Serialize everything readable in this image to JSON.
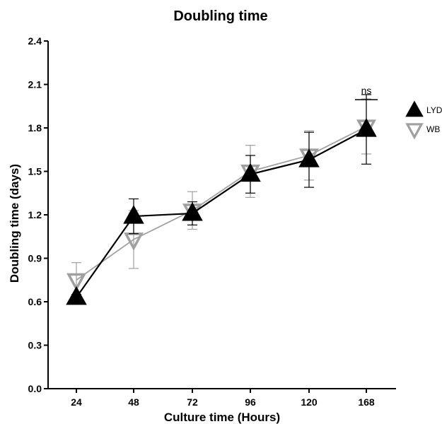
{
  "chart_data": {
    "type": "line",
    "title": "Doubling time",
    "xlabel": "Culture time (Hours)",
    "ylabel": "Doubling time (days)",
    "categories": [
      "24",
      "48",
      "72",
      "96",
      "120",
      "168"
    ],
    "ylim": [
      0,
      2.4
    ],
    "yticks": [
      "0.0",
      "0.3",
      "0.6",
      "0.9",
      "1.2",
      "1.5",
      "1.8",
      "2.1",
      "2.4"
    ],
    "grid": false,
    "legend_position": "top-right",
    "annotations": [
      {
        "text": "ns",
        "category": "168"
      }
    ],
    "series": [
      {
        "name": "WB",
        "color": "#a0a0a0",
        "marker": "triangle-down-open",
        "values": [
          0.75,
          1.03,
          1.23,
          1.5,
          1.61,
          1.81
        ],
        "error": [
          0.12,
          0.2,
          0.13,
          0.18,
          0.17,
          0.19
        ]
      },
      {
        "name": "LYD",
        "color": "#000000",
        "marker": "triangle-up-filled",
        "values": [
          0.63,
          1.19,
          1.21,
          1.48,
          1.58,
          1.79
        ],
        "error": [
          0.02,
          0.12,
          0.08,
          0.13,
          0.19,
          0.24
        ]
      }
    ]
  }
}
